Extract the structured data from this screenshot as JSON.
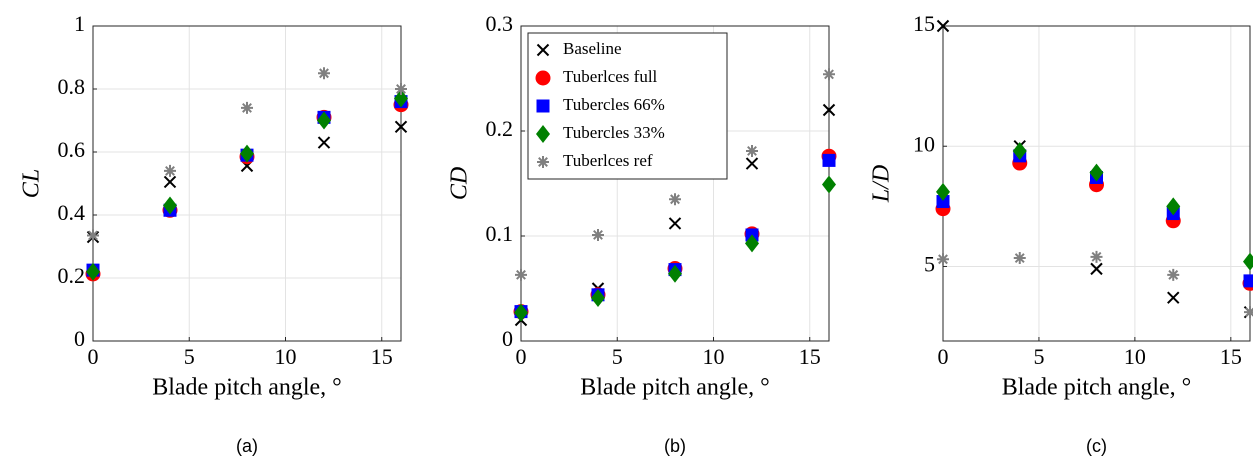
{
  "chart_data": [
    {
      "type": "scatter",
      "caption": "(a)",
      "xlabel": "Blade pitch angle, °",
      "ylabel": "CL",
      "x": [
        0,
        4,
        8,
        12,
        16
      ],
      "xlim": [
        0,
        16
      ],
      "xticks": [
        0,
        5,
        10,
        15
      ],
      "ylim": [
        0,
        1
      ],
      "yticks": [
        0,
        0.2,
        0.4,
        0.6,
        0.8,
        1
      ],
      "grid": true,
      "series": [
        {
          "marker": "x",
          "color": "#000000",
          "values": [
            0.33,
            0.505,
            0.556,
            0.63,
            0.68
          ]
        },
        {
          "marker": "circle",
          "color": "#ff0000",
          "values": [
            0.213,
            0.415,
            0.585,
            0.71,
            0.75
          ]
        },
        {
          "marker": "square",
          "color": "#0000ff",
          "values": [
            0.225,
            0.415,
            0.59,
            0.71,
            0.76
          ]
        },
        {
          "marker": "diamond",
          "color": "#008000",
          "values": [
            0.22,
            0.43,
            0.595,
            0.7,
            0.77
          ]
        },
        {
          "marker": "asterisk",
          "color": "#808080",
          "values": [
            0.335,
            0.54,
            0.74,
            0.85,
            0.8
          ]
        }
      ]
    },
    {
      "type": "scatter",
      "caption": "(b)",
      "xlabel": "Blade pitch angle, °",
      "ylabel": "CD",
      "x": [
        0,
        4,
        8,
        12,
        16
      ],
      "xlim": [
        0,
        16
      ],
      "xticks": [
        0,
        5,
        10,
        15
      ],
      "ylim": [
        0,
        0.3
      ],
      "yticks": [
        0,
        0.1,
        0.2,
        0.3
      ],
      "grid": true,
      "legend": "upper left",
      "series": [
        {
          "name": "Baseline",
          "marker": "x",
          "color": "#000000",
          "values": [
            0.02,
            0.05,
            0.112,
            0.169,
            0.22
          ]
        },
        {
          "name": "Tuberlces full",
          "marker": "circle",
          "color": "#ff0000",
          "values": [
            0.028,
            0.044,
            0.069,
            0.102,
            0.176
          ]
        },
        {
          "name": "Tubercles 66%",
          "marker": "square",
          "color": "#0000ff",
          "values": [
            0.028,
            0.044,
            0.068,
            0.101,
            0.172
          ]
        },
        {
          "name": "Tubercles 33%",
          "marker": "diamond",
          "color": "#008000",
          "values": [
            0.027,
            0.041,
            0.064,
            0.093,
            0.149
          ]
        },
        {
          "name": "Tuberlces ref",
          "marker": "asterisk",
          "color": "#808080",
          "values": [
            0.063,
            0.101,
            0.135,
            0.181,
            0.254
          ]
        }
      ]
    },
    {
      "type": "scatter",
      "caption": "(c)",
      "xlabel": "Blade pitch angle, °",
      "ylabel": "L/D",
      "x": [
        0,
        4,
        8,
        12,
        16
      ],
      "xlim": [
        0,
        16
      ],
      "xticks": [
        0,
        5,
        10,
        15
      ],
      "ylim": [
        1.9,
        15
      ],
      "yticks": [
        5,
        10,
        15
      ],
      "grid": true,
      "series": [
        {
          "marker": "x",
          "color": "#000000",
          "values": [
            15,
            10,
            4.9,
            3.7,
            3.1
          ]
        },
        {
          "marker": "circle",
          "color": "#ff0000",
          "values": [
            7.4,
            9.3,
            8.4,
            6.9,
            4.3
          ]
        },
        {
          "marker": "square",
          "color": "#0000ff",
          "values": [
            7.7,
            9.6,
            8.7,
            7.2,
            4.4
          ]
        },
        {
          "marker": "diamond",
          "color": "#008000",
          "values": [
            8.1,
            9.8,
            8.9,
            7.5,
            5.2
          ]
        },
        {
          "marker": "asterisk",
          "color": "#808080",
          "values": [
            5.3,
            5.35,
            5.4,
            4.65,
            3.1
          ]
        }
      ]
    }
  ]
}
